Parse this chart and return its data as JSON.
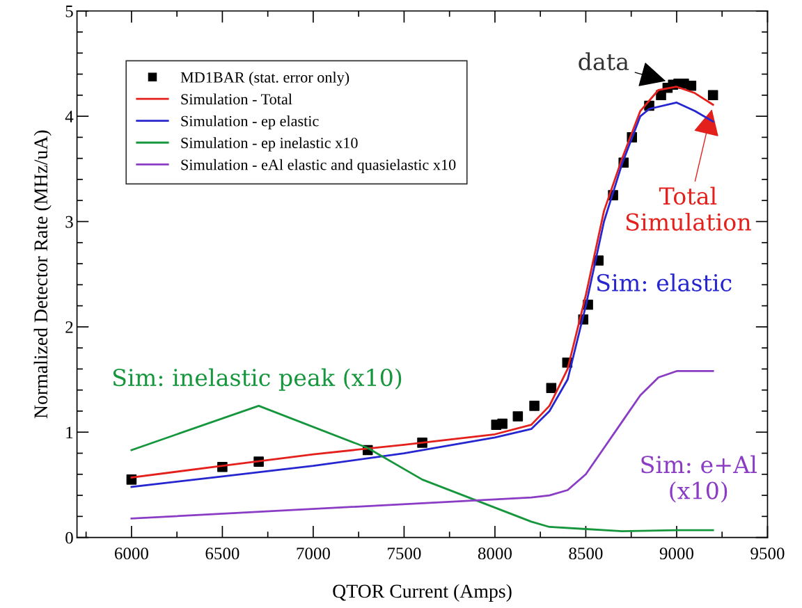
{
  "chart_data": {
    "type": "line",
    "xlabel": "QTOR Current (Amps)",
    "ylabel": "Normalized Detector Rate (MHz/uA)",
    "xlim": [
      5700,
      9500
    ],
    "xticks": [
      6000,
      6500,
      7000,
      7500,
      8000,
      8500,
      9000,
      9500
    ],
    "ylim": [
      0,
      5
    ],
    "yticks": [
      0,
      1,
      2,
      3,
      4,
      5
    ],
    "grid": false,
    "legend": "top left",
    "series": [
      {
        "name": "MD1BAR (stat. error only)",
        "type": "scatter",
        "marker": "square",
        "color": "#000000",
        "x": [
          6000,
          6500,
          6700,
          7300,
          7600,
          8007,
          8041,
          8126,
          8217,
          8310,
          8398,
          8486,
          8512,
          8570,
          8650,
          8708,
          8754,
          8849,
          8914,
          8950,
          8980,
          9010,
          9040,
          9080,
          9200
        ],
        "values": [
          0.55,
          0.67,
          0.72,
          0.83,
          0.9,
          1.07,
          1.08,
          1.15,
          1.25,
          1.42,
          1.66,
          2.07,
          2.21,
          2.63,
          3.25,
          3.56,
          3.8,
          4.1,
          4.2,
          4.27,
          4.3,
          4.31,
          4.31,
          4.29,
          4.2
        ]
      },
      {
        "name": "Simulation - Total",
        "color": "#e3201c",
        "x": [
          6000,
          6500,
          7000,
          7500,
          8000,
          8200,
          8300,
          8400,
          8500,
          8600,
          8700,
          8800,
          8900,
          9000,
          9100,
          9200
        ],
        "values": [
          0.57,
          0.68,
          0.79,
          0.88,
          0.98,
          1.07,
          1.25,
          1.6,
          2.3,
          3.1,
          3.6,
          4.05,
          4.25,
          4.28,
          4.22,
          4.11
        ]
      },
      {
        "name": "Simulation - ep elastic",
        "color": "#2626d0",
        "x": [
          6000,
          6500,
          7000,
          7500,
          8000,
          8200,
          8300,
          8400,
          8500,
          8600,
          8700,
          8800,
          8850,
          9000,
          9100,
          9200
        ],
        "values": [
          0.48,
          0.58,
          0.68,
          0.8,
          0.95,
          1.03,
          1.2,
          1.5,
          2.2,
          3.0,
          3.55,
          4.0,
          4.07,
          4.13,
          4.05,
          3.95
        ]
      },
      {
        "name": "Simulation - ep inelastic x10",
        "color": "#15963c",
        "x": [
          6000,
          6700,
          7300,
          7600,
          7900,
          8200,
          8300,
          8500,
          8700,
          9000,
          9200
        ],
        "values": [
          0.83,
          1.25,
          0.85,
          0.55,
          0.35,
          0.15,
          0.1,
          0.08,
          0.06,
          0.07,
          0.07
        ]
      },
      {
        "name": "Simulation - eAl elastic and quasielastic x10",
        "color": "#8a3cc4",
        "x": [
          6000,
          8200,
          8300,
          8400,
          8500,
          8600,
          8700,
          8800,
          8900,
          9000,
          9200
        ],
        "values": [
          0.18,
          0.38,
          0.4,
          0.45,
          0.6,
          0.85,
          1.1,
          1.35,
          1.52,
          1.58,
          1.58
        ]
      }
    ],
    "annotations": [
      {
        "text": "data",
        "x": 8950,
        "y": 4.33
      },
      {
        "text": "Total\nSimulation",
        "x": 9200,
        "y": 4.11
      },
      "Sim: elastic",
      "Sim: inelastic peak (x10)",
      "Sim: e+Al\n(x10)"
    ]
  }
}
